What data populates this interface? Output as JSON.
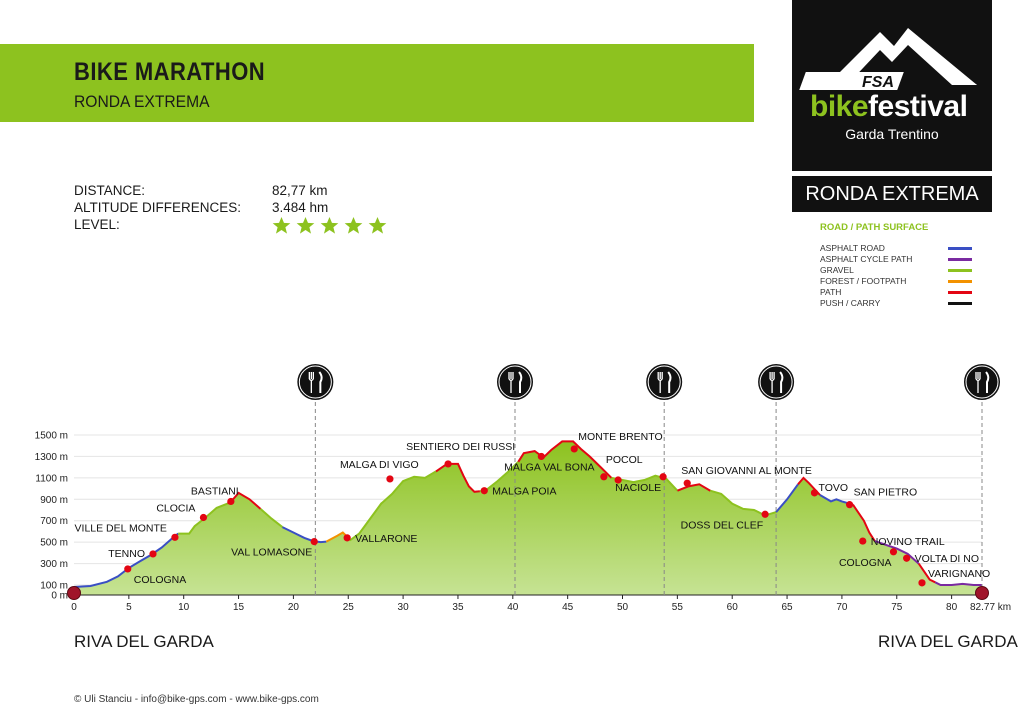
{
  "header": {
    "title": "BIKE MARATHON",
    "subtitle": "RONDA EXTREMA"
  },
  "stats": [
    {
      "label": "DISTANCE:",
      "value": "82,77 km"
    },
    {
      "label": "ALTITUDE DIFFERENCES:",
      "value": "3.484 hm"
    },
    {
      "label": "LEVEL:",
      "value": ""
    }
  ],
  "level_stars": 5,
  "logo": {
    "brand": "FSA",
    "bike": "bike",
    "festival": "festival",
    "place": "Garda Trentino"
  },
  "route_name": "RONDA EXTREMA",
  "legend": {
    "title": "ROAD / PATH SURFACE",
    "items": [
      {
        "label": "ASPHALT ROAD",
        "color": "#3a4fc4"
      },
      {
        "label": "ASPHALT CYCLE PATH",
        "color": "#7a2aa0"
      },
      {
        "label": "GRAVEL",
        "color": "#8dc21f"
      },
      {
        "label": "FOREST / FOOTPATH",
        "color": "#f39200"
      },
      {
        "label": "PATH",
        "color": "#e30613"
      },
      {
        "label": "PUSH / CARRY",
        "color": "#111111"
      }
    ]
  },
  "start_label": "RIVA DEL GARDA",
  "end_label": "RIVA DEL GARDA",
  "footer": "© Uli Stanciu - info@bike-gps.com - www.bike-gps.com",
  "colors": {
    "accent": "#8dc21f",
    "fill": "#a6d25a",
    "marker": "#e30613"
  },
  "chart_data": {
    "type": "area",
    "x_unit": "km",
    "xlim": [
      0,
      82.77
    ],
    "ylim": [
      0,
      1500
    ],
    "x_ticks": [
      0,
      5,
      10,
      15,
      20,
      25,
      30,
      35,
      40,
      45,
      50,
      55,
      60,
      65,
      70,
      75,
      80
    ],
    "x_end_label": "82.77 km",
    "y_ticks": [
      {
        "v": 0,
        "label": "0 m"
      },
      {
        "v": 100,
        "label": "100 m"
      },
      {
        "v": 300,
        "label": "300 m"
      },
      {
        "v": 500,
        "label": "500 m"
      },
      {
        "v": 700,
        "label": "700 m"
      },
      {
        "v": 900,
        "label": "900 m"
      },
      {
        "v": 1100,
        "label": "1100 m"
      },
      {
        "v": 1300,
        "label": "1300 m"
      },
      {
        "v": 1500,
        "label": "1500 m"
      }
    ],
    "profile": [
      [
        0,
        80
      ],
      [
        1.5,
        90
      ],
      [
        3,
        130
      ],
      [
        4,
        180
      ],
      [
        5,
        260
      ],
      [
        6,
        320
      ],
      [
        7,
        380
      ],
      [
        8,
        450
      ],
      [
        9,
        540
      ],
      [
        9.5,
        580
      ],
      [
        10.5,
        580
      ],
      [
        11,
        650
      ],
      [
        12,
        730
      ],
      [
        13,
        820
      ],
      [
        14,
        860
      ],
      [
        14.5,
        900
      ],
      [
        15,
        960
      ],
      [
        16,
        900
      ],
      [
        17,
        810
      ],
      [
        18,
        720
      ],
      [
        19,
        640
      ],
      [
        20,
        590
      ],
      [
        21,
        540
      ],
      [
        21.8,
        510
      ],
      [
        22.5,
        500
      ],
      [
        23,
        505
      ],
      [
        24,
        560
      ],
      [
        24.5,
        590
      ],
      [
        25.2,
        520
      ],
      [
        26,
        580
      ],
      [
        27,
        720
      ],
      [
        28,
        860
      ],
      [
        29,
        950
      ],
      [
        30,
        1070
      ],
      [
        31,
        1110
      ],
      [
        32,
        1100
      ],
      [
        33,
        1160
      ],
      [
        34,
        1230
      ],
      [
        35,
        1230
      ],
      [
        35.5,
        1120
      ],
      [
        36,
        1020
      ],
      [
        36.5,
        970
      ],
      [
        37.5,
        980
      ],
      [
        38.5,
        1060
      ],
      [
        39.5,
        1150
      ],
      [
        40.5,
        1250
      ],
      [
        41,
        1330
      ],
      [
        42,
        1350
      ],
      [
        42.8,
        1290
      ],
      [
        43.5,
        1360
      ],
      [
        44.5,
        1440
      ],
      [
        45.5,
        1440
      ],
      [
        46.2,
        1370
      ],
      [
        47,
        1300
      ],
      [
        48,
        1200
      ],
      [
        49,
        1100
      ],
      [
        50,
        1080
      ],
      [
        51,
        1060
      ],
      [
        52,
        1080
      ],
      [
        53,
        1120
      ],
      [
        54,
        1090
      ],
      [
        55,
        980
      ],
      [
        56,
        1020
      ],
      [
        57,
        1040
      ],
      [
        58,
        980
      ],
      [
        59,
        950
      ],
      [
        60,
        860
      ],
      [
        61,
        810
      ],
      [
        62,
        800
      ],
      [
        63,
        750
      ],
      [
        64,
        780
      ],
      [
        65,
        900
      ],
      [
        66,
        1040
      ],
      [
        66.5,
        1100
      ],
      [
        67,
        1050
      ],
      [
        68,
        940
      ],
      [
        69,
        880
      ],
      [
        69.5,
        900
      ],
      [
        70,
        880
      ],
      [
        71,
        850
      ],
      [
        72,
        700
      ],
      [
        72.5,
        590
      ],
      [
        73,
        510
      ],
      [
        75,
        440
      ],
      [
        76,
        390
      ],
      [
        77,
        300
      ],
      [
        78,
        150
      ],
      [
        79,
        100
      ],
      [
        80,
        100
      ],
      [
        81,
        110
      ],
      [
        82,
        100
      ],
      [
        82.77,
        100
      ]
    ],
    "path_colors": [
      {
        "from": 0,
        "to": 9.5,
        "color": "#3a4fc4"
      },
      {
        "from": 9.5,
        "to": 14,
        "color": "#8dc21f"
      },
      {
        "from": 14,
        "to": 17,
        "color": "#e30613"
      },
      {
        "from": 17,
        "to": 19,
        "color": "#8dc21f"
      },
      {
        "from": 19,
        "to": 23,
        "color": "#3a4fc4"
      },
      {
        "from": 23,
        "to": 25,
        "color": "#f39200"
      },
      {
        "from": 25,
        "to": 33,
        "color": "#8dc21f"
      },
      {
        "from": 33,
        "to": 37,
        "color": "#e30613"
      },
      {
        "from": 37,
        "to": 40.5,
        "color": "#8dc21f"
      },
      {
        "from": 40.5,
        "to": 49,
        "color": "#e30613"
      },
      {
        "from": 49,
        "to": 55,
        "color": "#8dc21f"
      },
      {
        "from": 55,
        "to": 58,
        "color": "#e30613"
      },
      {
        "from": 58,
        "to": 64,
        "color": "#8dc21f"
      },
      {
        "from": 64,
        "to": 66,
        "color": "#3a4fc4"
      },
      {
        "from": 66,
        "to": 68,
        "color": "#e30613"
      },
      {
        "from": 68,
        "to": 71,
        "color": "#3a4fc4"
      },
      {
        "from": 71,
        "to": 73,
        "color": "#e30613"
      },
      {
        "from": 73,
        "to": 77,
        "color": "#7a2aa0"
      },
      {
        "from": 77,
        "to": 78.5,
        "color": "#e30613"
      },
      {
        "from": 78.5,
        "to": 82.77,
        "color": "#7a2aa0"
      }
    ],
    "waypoints": [
      {
        "name": "TENNO",
        "km": 7.2,
        "alt": 390,
        "pos": "left"
      },
      {
        "name": "COLOGNA",
        "km": 4.9,
        "alt": 250,
        "pos": "right-below"
      },
      {
        "name": "VILLE DEL MONTE",
        "km": 9.2,
        "alt": 545,
        "pos": "left-above"
      },
      {
        "name": "CLOCIA",
        "km": 11.8,
        "alt": 730,
        "pos": "left-above"
      },
      {
        "name": "BASTIANI",
        "km": 14.3,
        "alt": 880,
        "pos": "above"
      },
      {
        "name": "VAL LOMASONE",
        "km": 21.9,
        "alt": 505,
        "pos": "left-below"
      },
      {
        "name": "VALLARONE",
        "km": 24.9,
        "alt": 540,
        "pos": "right"
      },
      {
        "name": "MALGA DI VIGO",
        "km": 28.8,
        "alt": 1090,
        "pos": "above"
      },
      {
        "name": "SENTIERO DEI RUSSI",
        "km": 34.1,
        "alt": 1230,
        "pos": "above-right"
      },
      {
        "name": "MALGA POIA",
        "km": 37.4,
        "alt": 980,
        "pos": "right"
      },
      {
        "name": "MALGA VAL BONA",
        "km": 42.6,
        "alt": 1300,
        "pos": "below"
      },
      {
        "name": "MONTE BRENTO",
        "km": 45.6,
        "alt": 1370,
        "pos": "above-right"
      },
      {
        "name": "POCOL",
        "km": 48.3,
        "alt": 1110,
        "pos": "above-right"
      },
      {
        "name": "NACIOLE",
        "km": 49.6,
        "alt": 1080,
        "pos": "below"
      },
      {
        "name": "",
        "km": 53.7,
        "alt": 1110,
        "pos": "none"
      },
      {
        "name": "SAN GIOVANNI AL MONTE",
        "km": 55.9,
        "alt": 1050,
        "pos": "above-right"
      },
      {
        "name": "DOSS DEL CLEF",
        "km": 63.0,
        "alt": 760,
        "pos": "left-below"
      },
      {
        "name": "TOVO",
        "km": 67.5,
        "alt": 960,
        "pos": "above-right"
      },
      {
        "name": "SAN PIETRO",
        "km": 70.7,
        "alt": 850,
        "pos": "above"
      },
      {
        "name": "NOVINO TRAIL",
        "km": 71.9,
        "alt": 510,
        "pos": "right"
      },
      {
        "name": "COLOGNA",
        "km": 74.7,
        "alt": 410,
        "pos": "left-below"
      },
      {
        "name": "VOLTA DI NO",
        "km": 75.9,
        "alt": 350,
        "pos": "right"
      },
      {
        "name": "VARIGNANO",
        "km": 77.3,
        "alt": 120,
        "pos": "right-above"
      }
    ],
    "food_stations_km": [
      22.0,
      40.2,
      53.8,
      64.0,
      82.77
    ]
  }
}
